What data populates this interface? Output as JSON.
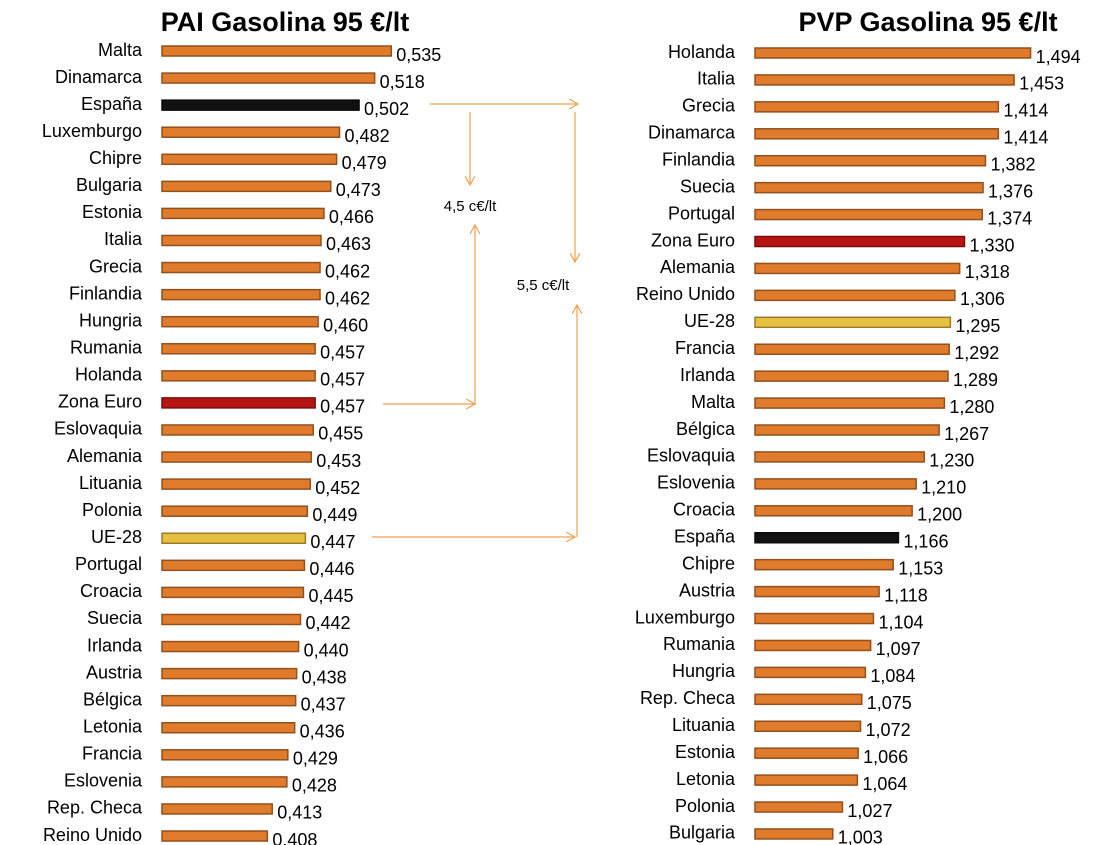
{
  "chart_data": [
    {
      "type": "bar",
      "orientation": "horizontal",
      "title": "PAI Gasolina 95 €/lt",
      "categories": [
        "Malta",
        "Dinamarca",
        "España",
        "Luxemburgo",
        "Chipre",
        "Bulgaria",
        "Estonia",
        "Italia",
        "Grecia",
        "Finlandia",
        "Hungria",
        "Rumania",
        "Holanda",
        "Zona Euro",
        "Eslovaquia",
        "Alemania",
        "Lituania",
        "Polonia",
        "UE-28",
        "Portugal",
        "Croacia",
        "Suecia",
        "Irlanda",
        "Austria",
        "Bélgica",
        "Letonia",
        "Francia",
        "Eslovenia",
        "Rep. Checa",
        "Reino Unido"
      ],
      "values": [
        0.535,
        0.518,
        0.502,
        0.482,
        0.479,
        0.473,
        0.466,
        0.463,
        0.462,
        0.462,
        0.46,
        0.457,
        0.457,
        0.457,
        0.455,
        0.453,
        0.452,
        0.449,
        0.447,
        0.446,
        0.445,
        0.442,
        0.44,
        0.438,
        0.437,
        0.436,
        0.429,
        0.428,
        0.413,
        0.408
      ],
      "value_labels": [
        "0,535",
        "0,518",
        "0,502",
        "0,482",
        "0,479",
        "0,473",
        "0,466",
        "0,463",
        "0,462",
        "0,462",
        "0,460",
        "0,457",
        "0,457",
        "0,457",
        "0,455",
        "0,453",
        "0,452",
        "0,449",
        "0,447",
        "0,446",
        "0,445",
        "0,442",
        "0,440",
        "0,438",
        "0,437",
        "0,436",
        "0,429",
        "0,428",
        "0,413",
        "0,408"
      ],
      "colors": [
        "#e07b2c",
        "#e07b2c",
        "#111111",
        "#e07b2c",
        "#e07b2c",
        "#e07b2c",
        "#e07b2c",
        "#e07b2c",
        "#e07b2c",
        "#e07b2c",
        "#e07b2c",
        "#e07b2c",
        "#e07b2c",
        "#b81414",
        "#e07b2c",
        "#e07b2c",
        "#e07b2c",
        "#e07b2c",
        "#e8c040",
        "#e07b2c",
        "#e07b2c",
        "#e07b2c",
        "#e07b2c",
        "#e07b2c",
        "#e07b2c",
        "#e07b2c",
        "#e07b2c",
        "#e07b2c",
        "#e07b2c",
        "#e07b2c"
      ],
      "xlim": [
        0.3,
        0.545
      ]
    },
    {
      "type": "bar",
      "orientation": "horizontal",
      "title": "PVP Gasolina 95 €/lt",
      "categories": [
        "Holanda",
        "Italia",
        "Grecia",
        "Dinamarca",
        "Finlandia",
        "Suecia",
        "Portugal",
        "Zona Euro",
        "Alemania",
        "Reino Unido",
        "UE-28",
        "Francia",
        "Irlanda",
        "Malta",
        "Bélgica",
        "Eslovaquia",
        "Eslovenia",
        "Croacia",
        "España",
        "Chipre",
        "Austria",
        "Luxemburgo",
        "Rumania",
        "Hungria",
        "Rep. Checa",
        "Lituania",
        "Estonia",
        "Letonia",
        "Polonia",
        "Bulgaria"
      ],
      "values": [
        1.494,
        1.453,
        1.414,
        1.414,
        1.382,
        1.376,
        1.374,
        1.33,
        1.318,
        1.306,
        1.295,
        1.292,
        1.289,
        1.28,
        1.267,
        1.23,
        1.21,
        1.2,
        1.166,
        1.153,
        1.118,
        1.104,
        1.097,
        1.084,
        1.075,
        1.072,
        1.066,
        1.064,
        1.027,
        1.003
      ],
      "value_labels": [
        "1,494",
        "1,453",
        "1,414",
        "1,414",
        "1,382",
        "1,376",
        "1,374",
        "1,330",
        "1,318",
        "1,306",
        "1,295",
        "1,292",
        "1,289",
        "1,280",
        "1,267",
        "1,230",
        "1,210",
        "1,200",
        "1,166",
        "1,153",
        "1,118",
        "1,104",
        "1,097",
        "1,084",
        "1,075",
        "1,072",
        "1,066",
        "1,064",
        "1,027",
        "1,003"
      ],
      "colors": [
        "#e07b2c",
        "#e07b2c",
        "#e07b2c",
        "#e07b2c",
        "#e07b2c",
        "#e07b2c",
        "#e07b2c",
        "#b81414",
        "#e07b2c",
        "#e07b2c",
        "#e8c040",
        "#e07b2c",
        "#e07b2c",
        "#e07b2c",
        "#e07b2c",
        "#e07b2c",
        "#e07b2c",
        "#e07b2c",
        "#111111",
        "#e07b2c",
        "#e07b2c",
        "#e07b2c",
        "#e07b2c",
        "#e07b2c",
        "#e07b2c",
        "#e07b2c",
        "#e07b2c",
        "#e07b2c",
        "#e07b2c",
        "#e07b2c"
      ],
      "xlim": [
        0.81,
        1.5
      ]
    }
  ],
  "annotations": [
    "4,5 c€/lt",
    "5,5 c€/lt"
  ]
}
